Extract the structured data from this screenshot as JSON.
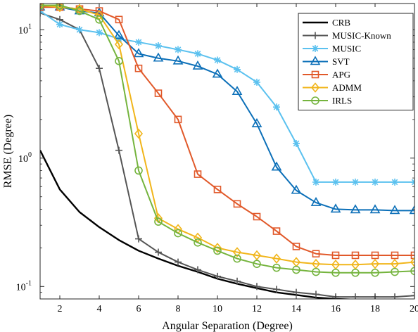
{
  "chart_data": {
    "type": "line",
    "xlabel": "Angular Separation (Degree)",
    "ylabel": "RMSE (Degree)",
    "xlim": [
      1,
      20
    ],
    "ylim": [
      0.08,
      16
    ],
    "yscale": "log",
    "grid": false,
    "legend_position": "top-right",
    "x_ticks": [
      2,
      4,
      6,
      8,
      10,
      12,
      14,
      16,
      18,
      20
    ],
    "y_ticks": [
      {
        "value": 0.1,
        "base": "10",
        "exp": "-1"
      },
      {
        "value": 1,
        "base": "10",
        "exp": "0"
      },
      {
        "value": 10,
        "base": "10",
        "exp": "1"
      }
    ],
    "x": [
      1,
      2,
      3,
      4,
      5,
      6,
      7,
      8,
      9,
      10,
      11,
      12,
      13,
      14,
      15,
      16,
      17,
      18,
      19,
      20
    ],
    "series": [
      {
        "name": "CRB",
        "color": "#000000",
        "marker": "none",
        "values": [
          1.15,
          0.57,
          0.38,
          0.29,
          0.23,
          0.19,
          0.165,
          0.145,
          0.13,
          0.115,
          0.105,
          0.097,
          0.09,
          0.086,
          0.082,
          0.08,
          0.079,
          0.078,
          0.078,
          0.078
        ]
      },
      {
        "name": "MUSIC-Known",
        "color": "#555555",
        "marker": "plus",
        "values": [
          13.5,
          12,
          10,
          5.0,
          1.15,
          0.235,
          0.185,
          0.155,
          0.135,
          0.12,
          0.11,
          0.1,
          0.095,
          0.09,
          0.087,
          0.083,
          0.083,
          0.083,
          0.083,
          0.085
        ]
      },
      {
        "name": "MUSIC",
        "color": "#5bc1ef",
        "marker": "asterisk",
        "values": [
          14,
          11,
          10,
          9.5,
          8.5,
          8,
          7.5,
          7,
          6.5,
          5.8,
          4.9,
          3.9,
          2.5,
          1.3,
          0.65,
          0.65,
          0.65,
          0.65,
          0.65,
          0.65
        ]
      },
      {
        "name": "SVT",
        "color": "#0b6fb8",
        "marker": "triangle",
        "values": [
          15,
          15,
          14,
          13.5,
          9,
          6.5,
          6,
          5.7,
          5.2,
          4.5,
          3.3,
          1.85,
          0.85,
          0.56,
          0.45,
          0.4,
          0.395,
          0.395,
          0.39,
          0.39
        ]
      },
      {
        "name": "APG",
        "color": "#e1592a",
        "marker": "square",
        "values": [
          15,
          15,
          14.5,
          14,
          12,
          5,
          3.2,
          2,
          0.75,
          0.57,
          0.44,
          0.35,
          0.27,
          0.205,
          0.18,
          0.175,
          0.175,
          0.175,
          0.175,
          0.175
        ]
      },
      {
        "name": "ADMM",
        "color": "#f1b51a",
        "marker": "diamond",
        "values": [
          15.5,
          15,
          14.5,
          13,
          7.7,
          1.55,
          0.34,
          0.28,
          0.24,
          0.2,
          0.185,
          0.175,
          0.165,
          0.155,
          0.15,
          0.148,
          0.148,
          0.15,
          0.15,
          0.155
        ]
      },
      {
        "name": "IRLS",
        "color": "#75b43e",
        "marker": "circle",
        "values": [
          15.5,
          15.5,
          14,
          12,
          5.7,
          0.8,
          0.32,
          0.26,
          0.22,
          0.19,
          0.165,
          0.15,
          0.14,
          0.135,
          0.13,
          0.128,
          0.128,
          0.128,
          0.13,
          0.132
        ]
      }
    ]
  }
}
